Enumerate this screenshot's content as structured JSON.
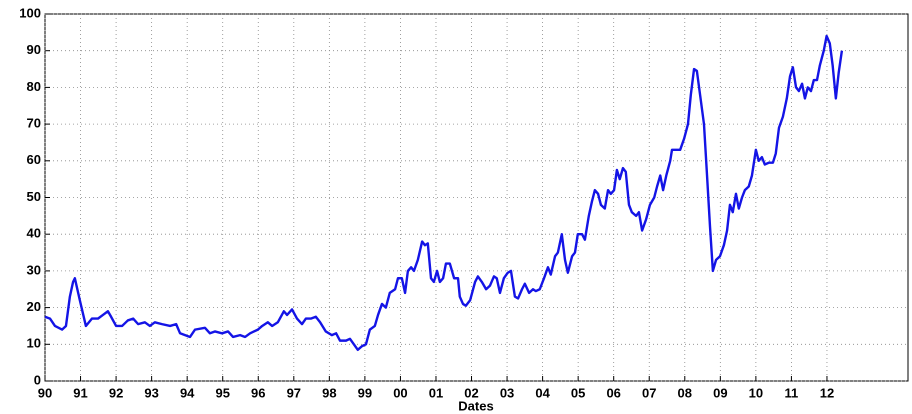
{
  "chart_data": {
    "type": "line",
    "xlabel": "Dates",
    "x": [
      1990.0,
      1990.14,
      1990.28,
      1990.48,
      1990.59,
      1990.7,
      1990.79,
      1990.84,
      1990.98,
      1991.15,
      1991.32,
      1991.49,
      1991.63,
      1991.77,
      1991.86,
      1992.0,
      1992.17,
      1992.33,
      1992.48,
      1992.62,
      1992.81,
      1992.95,
      1993.09,
      1993.29,
      1993.52,
      1993.69,
      1993.8,
      1993.94,
      1994.08,
      1994.22,
      1994.5,
      1994.64,
      1994.78,
      1994.98,
      1995.15,
      1995.29,
      1995.49,
      1995.63,
      1995.77,
      1995.99,
      1996.11,
      1996.27,
      1996.39,
      1996.55,
      1996.72,
      1996.81,
      1996.95,
      1997.09,
      1997.23,
      1997.34,
      1997.48,
      1997.62,
      1997.74,
      1997.9,
      1998.07,
      1998.19,
      1998.3,
      1998.47,
      1998.58,
      1998.69,
      1998.8,
      1998.92,
      1999.03,
      1999.14,
      1999.28,
      1999.37,
      1999.48,
      1999.59,
      1999.7,
      1999.85,
      1999.93,
      2000.04,
      2000.13,
      2000.21,
      2000.3,
      2000.38,
      2000.49,
      2000.61,
      2000.69,
      2000.77,
      2000.86,
      2000.94,
      2001.03,
      2001.11,
      2001.2,
      2001.28,
      2001.39,
      2001.51,
      2001.62,
      2001.67,
      2001.76,
      2001.84,
      2001.96,
      2002.1,
      2002.18,
      2002.29,
      2002.41,
      2002.52,
      2002.63,
      2002.71,
      2002.8,
      2002.91,
      2003.02,
      2003.11,
      2003.22,
      2003.31,
      2003.42,
      2003.5,
      2003.62,
      2003.73,
      2003.81,
      2003.92,
      2004.04,
      2004.15,
      2004.23,
      2004.35,
      2004.43,
      2004.54,
      2004.63,
      2004.71,
      2004.83,
      2004.91,
      2004.99,
      2005.11,
      2005.19,
      2005.3,
      2005.39,
      2005.47,
      2005.56,
      2005.64,
      2005.75,
      2005.84,
      2005.92,
      2006.01,
      2006.09,
      2006.17,
      2006.26,
      2006.34,
      2006.43,
      2006.51,
      2006.63,
      2006.71,
      2006.8,
      2006.91,
      2007.02,
      2007.14,
      2007.22,
      2007.31,
      2007.39,
      2007.48,
      2007.59,
      2007.64,
      2007.76,
      2007.87,
      2007.98,
      2008.09,
      2008.17,
      2008.26,
      2008.34,
      2008.43,
      2008.54,
      2008.62,
      2008.71,
      2008.79,
      2008.88,
      2008.99,
      2009.1,
      2009.19,
      2009.27,
      2009.35,
      2009.44,
      2009.52,
      2009.61,
      2009.69,
      2009.8,
      2009.89,
      2010.0,
      2010.08,
      2010.17,
      2010.25,
      2010.37,
      2010.48,
      2010.56,
      2010.65,
      2010.76,
      2010.87,
      2010.96,
      2011.04,
      2011.13,
      2011.21,
      2011.3,
      2011.38,
      2011.46,
      2011.55,
      2011.63,
      2011.72,
      2011.8,
      2011.91,
      2011.99,
      2012.08,
      2012.16,
      2012.25,
      2012.33,
      2012.42
    ],
    "series": [
      {
        "color": "#1414e6",
        "values": [
          17.5,
          17,
          15,
          14,
          15,
          23,
          27,
          28,
          22,
          15,
          17,
          17,
          18,
          19,
          17.5,
          15,
          15,
          16.5,
          17,
          15.5,
          16,
          15,
          16,
          15.5,
          15,
          15.5,
          13,
          12.5,
          12,
          14,
          14.5,
          13,
          13.5,
          13,
          13.5,
          12,
          12.5,
          12,
          13,
          14,
          15,
          16,
          15,
          16,
          19,
          18,
          19.5,
          17,
          15.5,
          17,
          17,
          17.5,
          16,
          13.5,
          12.5,
          13,
          11,
          11,
          11.5,
          10,
          8.5,
          9.5,
          10,
          14,
          15,
          18,
          21,
          20,
          24,
          25,
          28,
          28,
          24,
          30,
          31,
          30,
          33,
          38,
          37,
          37.5,
          28,
          27,
          30,
          27,
          28,
          32,
          32,
          28,
          28,
          23,
          21,
          20.5,
          22,
          27,
          28.5,
          27,
          25,
          26,
          28.5,
          28,
          24,
          28,
          29.5,
          30,
          23,
          22.5,
          25,
          26.5,
          24,
          25,
          24.5,
          25,
          28,
          31,
          29,
          34,
          35,
          40,
          33,
          29.5,
          34,
          35,
          40,
          40,
          38.5,
          45,
          49,
          52,
          51,
          48,
          47,
          52,
          51,
          52,
          57.5,
          55,
          58,
          57,
          48,
          46,
          45,
          46,
          41,
          44,
          48,
          50,
          53,
          56,
          52,
          56,
          60,
          63,
          63,
          63,
          66,
          70,
          78,
          85,
          84.5,
          78,
          70,
          57,
          42,
          30,
          33,
          34,
          37,
          41,
          48,
          46,
          51,
          47,
          50,
          52,
          53,
          56,
          63,
          60,
          61,
          59,
          59.5,
          59.5,
          62,
          69,
          72,
          77,
          83,
          85.5,
          80,
          79,
          81,
          77,
          80,
          79,
          82,
          82,
          86,
          90,
          94,
          92,
          86,
          77,
          84,
          90
        ]
      }
    ],
    "xlim": [
      1990,
      2014.28
    ],
    "ylim": [
      0,
      100
    ],
    "xticks": [
      {
        "value": 1990,
        "label": "90"
      },
      {
        "value": 1991,
        "label": "91"
      },
      {
        "value": 1992,
        "label": "92"
      },
      {
        "value": 1993,
        "label": "93"
      },
      {
        "value": 1994,
        "label": "94"
      },
      {
        "value": 1995,
        "label": "95"
      },
      {
        "value": 1996,
        "label": "96"
      },
      {
        "value": 1997,
        "label": "97"
      },
      {
        "value": 1998,
        "label": "98"
      },
      {
        "value": 1999,
        "label": "99"
      },
      {
        "value": 2000,
        "label": "00"
      },
      {
        "value": 2001,
        "label": "01"
      },
      {
        "value": 2002,
        "label": "02"
      },
      {
        "value": 2003,
        "label": "03"
      },
      {
        "value": 2004,
        "label": "04"
      },
      {
        "value": 2005,
        "label": "05"
      },
      {
        "value": 2006,
        "label": "06"
      },
      {
        "value": 2007,
        "label": "07"
      },
      {
        "value": 2008,
        "label": "08"
      },
      {
        "value": 2009,
        "label": "09"
      },
      {
        "value": 2010,
        "label": "10"
      },
      {
        "value": 2011,
        "label": "11"
      },
      {
        "value": 2012,
        "label": "12"
      }
    ],
    "yticks": [
      0,
      10,
      20,
      30,
      40,
      50,
      60,
      70,
      80,
      90,
      100
    ],
    "grid": true
  }
}
